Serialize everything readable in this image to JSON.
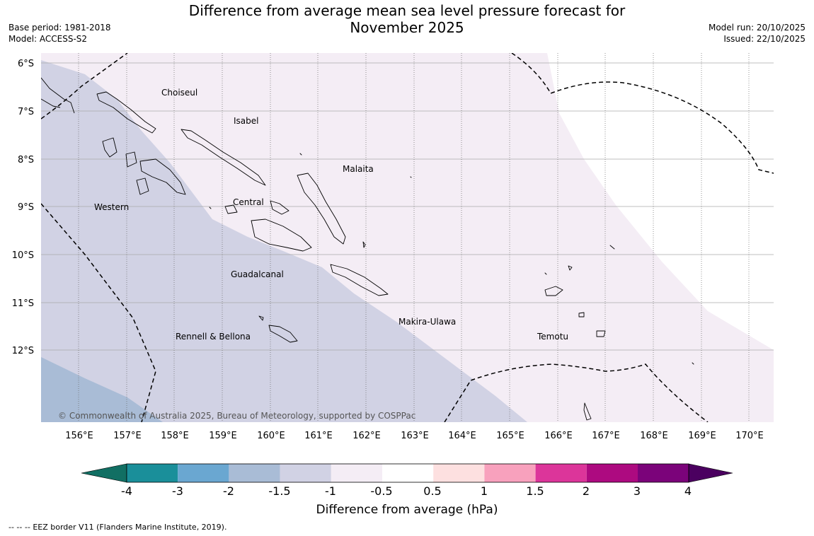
{
  "header": {
    "title_line1": "Difference from average mean sea level pressure forecast for",
    "title_line2": "November 2025",
    "base_period": "Base period: 1981-2018",
    "model": "Model: ACCESS-S2",
    "model_run": "Model run: 20/10/2025",
    "issued": "Issued: 22/10/2025"
  },
  "map": {
    "lat_labels": [
      "6°S",
      "7°S",
      "8°S",
      "9°S",
      "10°S",
      "11°S",
      "12°S"
    ],
    "lon_labels": [
      "156°E",
      "157°E",
      "158°E",
      "159°E",
      "160°E",
      "161°E",
      "162°E",
      "163°E",
      "164°E",
      "165°E",
      "166°E",
      "167°E",
      "168°E",
      "169°E",
      "170°E"
    ],
    "regions": [
      "Choiseul",
      "Isabel",
      "Malaita",
      "Western",
      "Central",
      "Guadalcanal",
      "Makira-Ulawa",
      "Rennell & Bellona",
      "Temotu"
    ],
    "copyright": "© Commonwealth of Australia 2025, Bureau of Meteorology, supported by COSPPac"
  },
  "colorbar": {
    "tick_labels": [
      "-4",
      "-3",
      "-2",
      "-1.5",
      "-1",
      "-0.5",
      "0.5",
      "1",
      "1.5",
      "2",
      "3",
      "4"
    ],
    "colors": [
      "#1a8f9a",
      "#6aa7d1",
      "#a9bcd6",
      "#d1d2e4",
      "#f4edf5",
      "#ffffff",
      "#fde0e0",
      "#f8a1bd",
      "#dc359a",
      "#ad0a80",
      "#7b037a"
    ],
    "extend_low_color": "#116f63",
    "extend_high_color": "#4b0060",
    "label": "Difference from average (hPa)"
  },
  "footer": {
    "legend_symbol": "-- -- --",
    "legend_text": "EEZ border V11 (Flanders Marine Institute, 2019)."
  }
}
